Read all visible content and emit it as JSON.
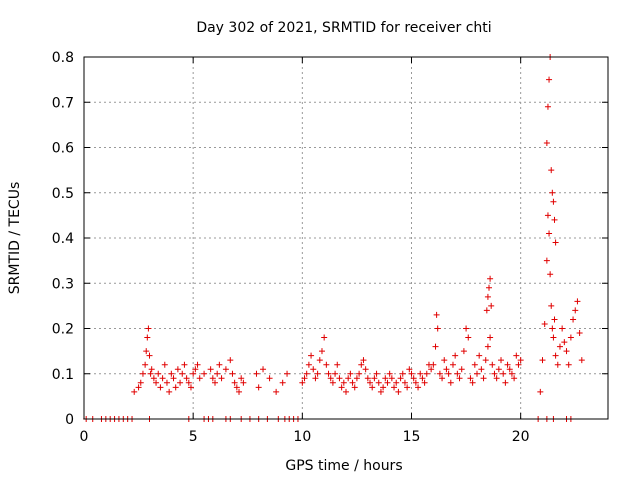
{
  "chart_data": {
    "type": "scatter",
    "title": "Day 302 of 2021, SRMTID for receiver chti",
    "xlabel": "GPS time / hours",
    "ylabel": "SRMTID / TECUs",
    "xlim": [
      0,
      24
    ],
    "ylim": [
      0,
      0.8
    ],
    "xticks": [
      0,
      5,
      10,
      15,
      20
    ],
    "yticks": [
      0,
      0.1,
      0.2,
      0.3,
      0.4,
      0.5,
      0.6,
      0.7,
      0.8
    ],
    "xtick_labels": [
      "0",
      "5",
      "10",
      "15",
      "20"
    ],
    "ytick_labels": [
      "0",
      "0.1",
      "0.2",
      "0.3",
      "0.4",
      "0.5",
      "0.6",
      "0.7",
      "0.8"
    ],
    "grid": true,
    "marker": "+",
    "color": "#e00000",
    "series": [
      {
        "name": "SRMTID",
        "x": [
          0.1,
          0.4,
          0.8,
          1.0,
          1.2,
          1.4,
          1.6,
          1.8,
          2.0,
          2.2,
          3.0,
          4.8,
          5.5,
          5.7,
          5.9,
          6.5,
          6.7,
          7.2,
          7.6,
          8.0,
          8.4,
          8.9,
          9.2,
          9.4,
          9.6,
          9.8,
          20.8,
          21.2,
          21.5,
          22.1,
          22.3,
          2.3,
          2.5,
          2.6,
          2.7,
          2.8,
          2.85,
          2.9,
          2.95,
          3.0,
          3.05,
          3.1,
          3.2,
          3.3,
          3.4,
          3.5,
          3.6,
          3.7,
          3.8,
          3.9,
          4.0,
          4.1,
          4.2,
          4.3,
          4.4,
          4.5,
          4.6,
          4.7,
          4.8,
          4.9,
          5.0,
          5.1,
          5.2,
          5.3,
          5.5,
          5.8,
          5.9,
          6.0,
          6.1,
          6.2,
          6.3,
          6.5,
          6.7,
          6.8,
          6.9,
          7.0,
          7.1,
          7.2,
          7.3,
          7.9,
          8.0,
          8.2,
          8.5,
          8.8,
          9.1,
          9.3,
          10.0,
          10.1,
          10.2,
          10.3,
          10.4,
          10.5,
          10.6,
          10.7,
          10.8,
          10.9,
          11.0,
          11.1,
          11.2,
          11.3,
          11.4,
          11.5,
          11.6,
          11.7,
          11.8,
          11.9,
          12.0,
          12.1,
          12.2,
          12.3,
          12.4,
          12.5,
          12.6,
          12.7,
          12.8,
          12.9,
          13.0,
          13.1,
          13.2,
          13.3,
          13.4,
          13.5,
          13.6,
          13.7,
          13.8,
          13.9,
          14.0,
          14.1,
          14.2,
          14.3,
          14.4,
          14.5,
          14.6,
          14.7,
          14.8,
          14.9,
          15.0,
          15.1,
          15.2,
          15.3,
          15.4,
          15.5,
          15.6,
          15.7,
          15.8,
          15.9,
          16.0,
          16.1,
          16.15,
          16.2,
          16.3,
          16.4,
          16.5,
          16.6,
          16.7,
          16.8,
          16.9,
          17.0,
          17.1,
          17.2,
          17.3,
          17.4,
          17.5,
          17.6,
          17.7,
          17.8,
          17.9,
          18.0,
          18.1,
          18.2,
          18.3,
          18.4,
          18.5,
          18.6,
          18.7,
          18.8,
          18.9,
          19.0,
          19.1,
          19.2,
          19.3,
          19.4,
          19.5,
          19.6,
          19.7,
          19.8,
          19.9,
          20.0,
          18.45,
          18.5,
          18.55,
          18.6,
          18.65,
          20.9,
          21.0,
          21.1,
          21.2,
          21.25,
          21.3,
          21.35,
          21.4,
          21.45,
          21.5,
          21.55,
          21.6,
          21.7,
          21.8,
          21.9,
          22.0,
          22.1,
          22.2,
          22.3,
          22.4,
          22.5,
          22.6,
          22.7,
          22.8,
          21.2,
          21.25,
          21.3,
          21.35,
          21.4,
          21.45,
          21.5,
          21.55,
          21.6
        ],
        "y": [
          0,
          0,
          0,
          0,
          0,
          0,
          0,
          0,
          0,
          0,
          0,
          0,
          0,
          0,
          0,
          0,
          0,
          0,
          0,
          0,
          0,
          0,
          0,
          0,
          0,
          0,
          0,
          0,
          0,
          0,
          0,
          0.06,
          0.07,
          0.08,
          0.1,
          0.12,
          0.15,
          0.18,
          0.2,
          0.14,
          0.1,
          0.11,
          0.09,
          0.08,
          0.1,
          0.07,
          0.09,
          0.12,
          0.08,
          0.06,
          0.1,
          0.09,
          0.07,
          0.11,
          0.08,
          0.1,
          0.12,
          0.09,
          0.08,
          0.07,
          0.1,
          0.11,
          0.12,
          0.09,
          0.1,
          0.11,
          0.09,
          0.08,
          0.1,
          0.12,
          0.09,
          0.11,
          0.13,
          0.1,
          0.08,
          0.07,
          0.06,
          0.09,
          0.08,
          0.1,
          0.07,
          0.11,
          0.09,
          0.06,
          0.08,
          0.1,
          0.08,
          0.09,
          0.1,
          0.12,
          0.14,
          0.11,
          0.09,
          0.1,
          0.13,
          0.15,
          0.18,
          0.12,
          0.1,
          0.09,
          0.08,
          0.1,
          0.12,
          0.09,
          0.07,
          0.08,
          0.06,
          0.09,
          0.1,
          0.08,
          0.07,
          0.09,
          0.1,
          0.12,
          0.13,
          0.11,
          0.09,
          0.08,
          0.07,
          0.09,
          0.1,
          0.08,
          0.06,
          0.07,
          0.09,
          0.08,
          0.1,
          0.09,
          0.07,
          0.08,
          0.06,
          0.09,
          0.1,
          0.08,
          0.07,
          0.11,
          0.1,
          0.09,
          0.08,
          0.07,
          0.1,
          0.09,
          0.08,
          0.1,
          0.12,
          0.11,
          0.12,
          0.16,
          0.23,
          0.2,
          0.1,
          0.09,
          0.13,
          0.11,
          0.1,
          0.08,
          0.12,
          0.14,
          0.1,
          0.09,
          0.11,
          0.15,
          0.2,
          0.18,
          0.09,
          0.08,
          0.12,
          0.1,
          0.14,
          0.11,
          0.09,
          0.13,
          0.16,
          0.18,
          0.12,
          0.1,
          0.09,
          0.11,
          0.13,
          0.1,
          0.08,
          0.12,
          0.11,
          0.1,
          0.09,
          0.14,
          0.12,
          0.13,
          0.24,
          0.27,
          0.29,
          0.31,
          0.25,
          0.06,
          0.13,
          0.21,
          0.35,
          0.45,
          0.41,
          0.32,
          0.25,
          0.2,
          0.18,
          0.22,
          0.14,
          0.12,
          0.16,
          0.2,
          0.17,
          0.15,
          0.12,
          0.18,
          0.22,
          0.24,
          0.26,
          0.19,
          0.13,
          0.61,
          0.69,
          0.75,
          0.8,
          0.55,
          0.5,
          0.48,
          0.44,
          0.39
        ]
      }
    ]
  }
}
